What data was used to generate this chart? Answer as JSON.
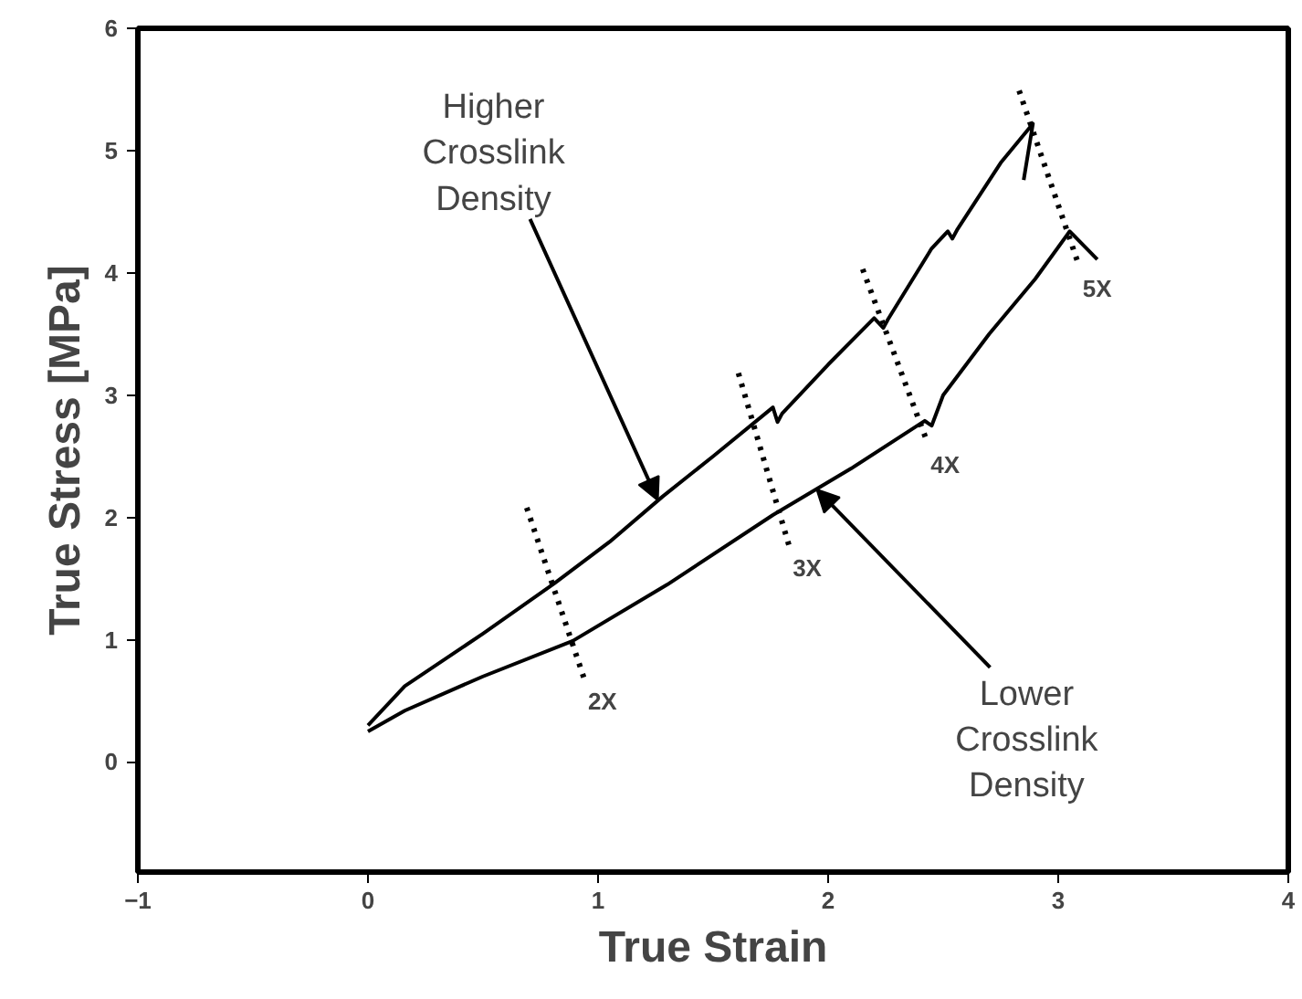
{
  "chart_data": {
    "type": "line",
    "xlabel": "True Strain",
    "ylabel": "True Stress [MPa]",
    "xlim": [
      -1,
      4
    ],
    "ylim": [
      -0.9,
      6
    ],
    "xticks": [
      -1,
      0,
      1,
      2,
      3,
      4
    ],
    "yticks": [
      0,
      1,
      2,
      3,
      4,
      5,
      6
    ],
    "grid": false,
    "line_style": "solid",
    "marker": "none",
    "series": [
      {
        "color": "#000000",
        "x": [
          0,
          0.16,
          0.5,
          0.81,
          1.05,
          1.28,
          1.5,
          1.76,
          1.78,
          1.8,
          2.0,
          2.2,
          2.24,
          2.26,
          2.45,
          2.52,
          2.54,
          2.56,
          2.75,
          2.89,
          2.85
        ],
        "values": [
          0.3,
          0.62,
          1.05,
          1.46,
          1.8,
          2.17,
          2.5,
          2.9,
          2.78,
          2.85,
          3.25,
          3.63,
          3.55,
          3.62,
          4.2,
          4.34,
          4.28,
          4.35,
          4.9,
          5.22,
          4.76
        ]
      },
      {
        "color": "#000000",
        "x": [
          0,
          0.16,
          0.5,
          0.89,
          1.3,
          1.76,
          2.1,
          2.42,
          2.45,
          2.5,
          2.7,
          2.9,
          3.05,
          3.17
        ],
        "values": [
          0.25,
          0.42,
          0.7,
          0.99,
          1.45,
          2.02,
          2.4,
          2.79,
          2.75,
          3.0,
          3.5,
          3.95,
          4.34,
          4.11
        ]
      },
      {
        "name": "2X",
        "color": "#000000",
        "line_style": "dotted",
        "x": [
          0.69,
          0.94
        ],
        "values": [
          2.08,
          0.68
        ]
      },
      {
        "name": "3X",
        "color": "#000000",
        "line_style": "dotted",
        "x": [
          1.61,
          1.83
        ],
        "values": [
          3.18,
          1.77
        ]
      },
      {
        "name": "4X",
        "color": "#000000",
        "line_style": "dotted",
        "x": [
          2.15,
          2.43
        ],
        "values": [
          4.03,
          2.62
        ]
      },
      {
        "name": "5X",
        "color": "#000000",
        "line_style": "dotted",
        "x": [
          2.83,
          3.09
        ],
        "values": [
          5.49,
          4.06
        ]
      }
    ],
    "annotations": [
      {
        "text": "Higher\nCrosslink\nDensity",
        "x": 1.26,
        "y": 2.14
      },
      {
        "text": "Lower\nCrosslink\nDensity",
        "x": 1.95,
        "y": 2.23
      }
    ]
  }
}
